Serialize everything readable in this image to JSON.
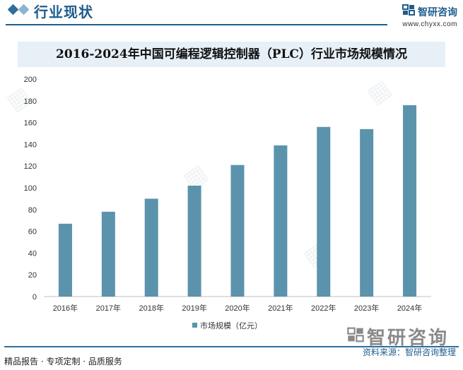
{
  "header": {
    "section_title": "行业现状",
    "brand_name": "智研咨询",
    "brand_url": "www.chyxx.com"
  },
  "colors": {
    "primary": "#1f5c8c",
    "bar": "#5b93ac",
    "title_band": "#e7f0f7"
  },
  "chart_data": {
    "type": "bar",
    "title": "2016-2024年中国可编程逻辑控制器（PLC）行业市场规模情况",
    "categories": [
      "2016年",
      "2017年",
      "2018年",
      "2019年",
      "2020年",
      "2021年",
      "2022年",
      "2023年",
      "2024年"
    ],
    "series": [
      {
        "name": "市场规模（亿元）",
        "values": [
          67,
          78,
          90,
          102,
          121,
          139,
          156,
          154,
          176
        ]
      }
    ],
    "ylim": [
      0,
      200
    ],
    "yticks": [
      0,
      20,
      40,
      60,
      80,
      100,
      120,
      140,
      160,
      180,
      200
    ],
    "grid": false,
    "legend_position": "bottom"
  },
  "footer": {
    "left_text": "精品报告 · 专项定制 · 品质服务",
    "source_text": "资料来源：智研咨询整理",
    "brand_name": "智研咨询"
  }
}
